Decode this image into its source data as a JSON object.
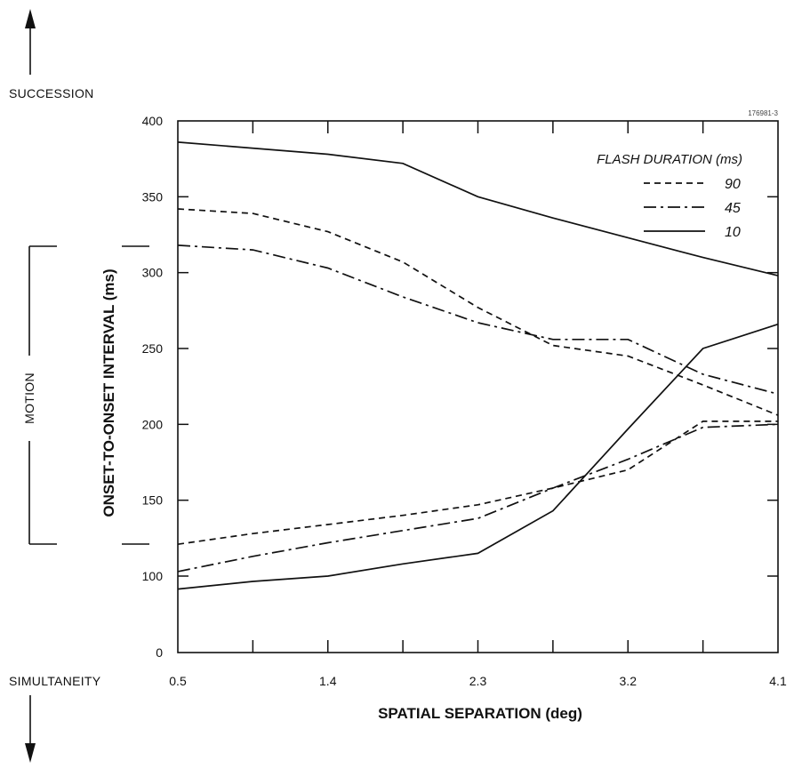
{
  "figure_id": "176981-3",
  "labels": {
    "succession": "SUCCESSION",
    "motion": "MOTION",
    "simultaneity": "SIMULTANEITY"
  },
  "chart_data": {
    "type": "line",
    "xlabel": "SPATIAL SEPARATION (deg)",
    "ylabel": "ONSET-TO-ONSET INTERVAL (ms)",
    "xlim": [
      0.5,
      4.1
    ],
    "ylim": [
      0,
      400
    ],
    "x_ticks": [
      0.5,
      1.4,
      2.3,
      3.2,
      4.1
    ],
    "y_ticks": [
      0,
      100,
      150,
      200,
      250,
      300,
      350,
      400
    ],
    "legend_title": "FLASH DURATION (ms)",
    "legend_position": "top-right",
    "motion_range": [
      120,
      320
    ],
    "series": [
      {
        "name": "90",
        "dash": "dashed",
        "curve": "upper",
        "x": [
          0.5,
          0.95,
          1.4,
          1.85,
          2.3,
          2.75,
          3.2,
          3.65,
          4.1
        ],
        "y": [
          342,
          339,
          327,
          307,
          277,
          252,
          245,
          226,
          206
        ]
      },
      {
        "name": "45",
        "dash": "dash-dot",
        "curve": "upper",
        "x": [
          0.5,
          0.95,
          1.4,
          1.85,
          2.3,
          2.75,
          3.2,
          3.65,
          4.1
        ],
        "y": [
          318,
          315,
          303,
          284,
          267,
          256,
          256,
          233,
          220
        ]
      },
      {
        "name": "10",
        "dash": "solid",
        "curve": "upper",
        "x": [
          0.5,
          1.4,
          1.85,
          2.3,
          2.75,
          3.2,
          3.65,
          4.1
        ],
        "y": [
          386,
          378,
          372,
          350,
          336,
          323,
          310,
          298
        ]
      },
      {
        "name": "90",
        "dash": "dashed",
        "curve": "lower",
        "x": [
          0.5,
          0.95,
          1.4,
          1.85,
          2.3,
          2.75,
          3.2,
          3.65,
          4.1
        ],
        "y": [
          121,
          128,
          134,
          140,
          147,
          158,
          170,
          202,
          202
        ]
      },
      {
        "name": "45",
        "dash": "dash-dot",
        "curve": "lower",
        "x": [
          0.5,
          0.95,
          1.4,
          1.85,
          2.3,
          2.75,
          3.2,
          3.65,
          4.1
        ],
        "y": [
          103,
          113,
          122,
          130,
          138,
          158,
          177,
          198,
          200
        ]
      },
      {
        "name": "10",
        "dash": "solid",
        "curve": "lower",
        "x": [
          0.5,
          0.95,
          1.4,
          1.85,
          2.3,
          2.75,
          3.2,
          3.65,
          4.1
        ],
        "y": [
          83,
          93,
          100,
          108,
          115,
          143,
          197,
          250,
          266
        ]
      }
    ]
  }
}
